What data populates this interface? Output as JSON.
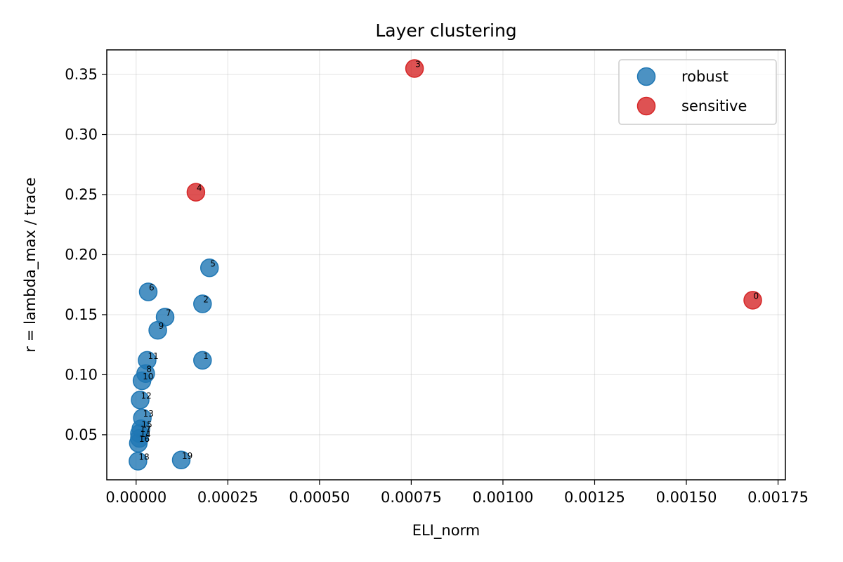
{
  "chart_data": {
    "type": "scatter",
    "title": "Layer clustering",
    "xlabel": "ELI_norm",
    "ylabel": "r = lambda_max / trace",
    "xlim": [
      -8e-05,
      0.00177
    ],
    "ylim": [
      0.0125,
      0.3705
    ],
    "xticks": [
      0.0,
      0.00025,
      0.0005,
      0.00075,
      0.001,
      0.00125,
      0.0015,
      0.00175
    ],
    "xtick_labels": [
      "0.00000",
      "0.00025",
      "0.00050",
      "0.00075",
      "0.00100",
      "0.00125",
      "0.00150",
      "0.00175"
    ],
    "yticks": [
      0.05,
      0.1,
      0.15,
      0.2,
      0.25,
      0.3,
      0.35
    ],
    "ytick_labels": [
      "0.05",
      "0.10",
      "0.15",
      "0.20",
      "0.25",
      "0.30",
      "0.35"
    ],
    "grid": true,
    "legend_position": "top-right",
    "series": [
      {
        "name": "robust",
        "color": "#1f77b4",
        "points": [
          {
            "label": "1",
            "x": 0.000181,
            "y": 0.112
          },
          {
            "label": "2",
            "x": 0.000181,
            "y": 0.159
          },
          {
            "label": "5",
            "x": 0.0002,
            "y": 0.189
          },
          {
            "label": "6",
            "x": 3.3e-05,
            "y": 0.169
          },
          {
            "label": "7",
            "x": 7.9e-05,
            "y": 0.148
          },
          {
            "label": "8",
            "x": 2.6e-05,
            "y": 0.101
          },
          {
            "label": "9",
            "x": 5.9e-05,
            "y": 0.137
          },
          {
            "label": "10",
            "x": 1.6e-05,
            "y": 0.095
          },
          {
            "label": "11",
            "x": 3e-05,
            "y": 0.112
          },
          {
            "label": "12",
            "x": 1.1e-05,
            "y": 0.079
          },
          {
            "label": "13",
            "x": 1.7e-05,
            "y": 0.064
          },
          {
            "label": "14",
            "x": 9e-06,
            "y": 0.047
          },
          {
            "label": "15",
            "x": 1.3e-05,
            "y": 0.055
          },
          {
            "label": "16",
            "x": 6e-06,
            "y": 0.043
          },
          {
            "label": "17",
            "x": 9e-06,
            "y": 0.051
          },
          {
            "label": "18",
            "x": 5e-06,
            "y": 0.028
          },
          {
            "label": "19",
            "x": 0.000123,
            "y": 0.029
          }
        ]
      },
      {
        "name": "sensitive",
        "color": "#d62728",
        "points": [
          {
            "label": "0",
            "x": 0.001681,
            "y": 0.162
          },
          {
            "label": "3",
            "x": 0.000759,
            "y": 0.355
          },
          {
            "label": "4",
            "x": 0.000163,
            "y": 0.252
          }
        ]
      }
    ]
  }
}
